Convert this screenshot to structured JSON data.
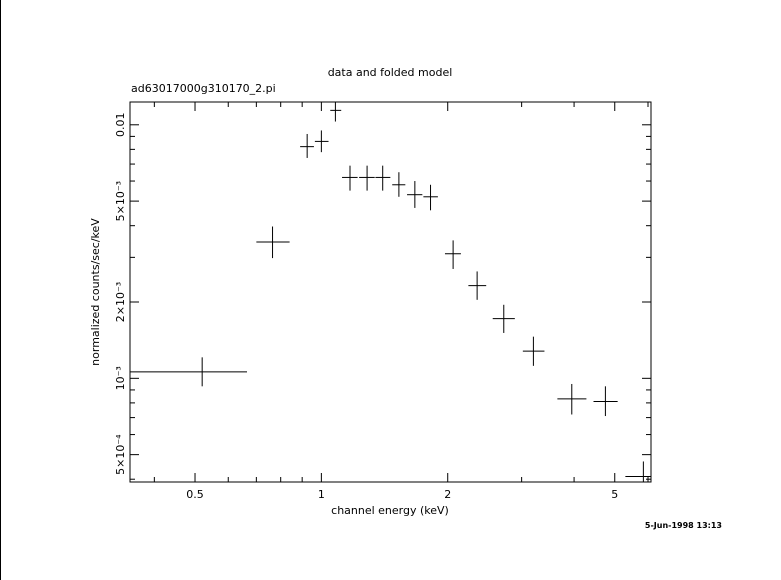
{
  "chart_data": {
    "type": "scatter",
    "title": "data and folded model",
    "subtitle": "ad63017000g310170_2.pi",
    "xlabel": "channel energy (keV)",
    "ylabel": "normalized counts/sec/keV",
    "x_scale": "log",
    "y_scale": "log",
    "xlim": [
      0.35,
      6.1
    ],
    "ylim": [
      0.00039,
      0.0123
    ],
    "x_tick_labels": [
      "0.5",
      "1",
      "2",
      "5"
    ],
    "y_tick_labels": [
      "5×10⁻⁴",
      "10⁻³",
      "2×10⁻³",
      "5×10⁻³",
      "0.01"
    ],
    "timestamp": "5-Jun-1998 13:13",
    "series": [
      {
        "points": [
          {
            "x": 0.52,
            "xlo": 0.35,
            "xhi": 0.665,
            "y": 0.00106,
            "ylo": 0.00093,
            "yhi": 0.00121
          },
          {
            "x": 0.765,
            "xlo": 0.7,
            "xhi": 0.84,
            "y": 0.00345,
            "ylo": 0.00298,
            "yhi": 0.00397
          },
          {
            "x": 0.925,
            "xlo": 0.89,
            "xhi": 0.96,
            "y": 0.0082,
            "ylo": 0.0074,
            "yhi": 0.0092
          },
          {
            "x": 1.0,
            "xlo": 0.965,
            "xhi": 1.04,
            "y": 0.0086,
            "ylo": 0.0078,
            "yhi": 0.0095
          },
          {
            "x": 1.08,
            "xlo": 1.05,
            "xhi": 1.115,
            "y": 0.0114,
            "ylo": 0.0103,
            "yhi": 0.0126
          },
          {
            "x": 1.17,
            "xlo": 1.12,
            "xhi": 1.22,
            "y": 0.0062,
            "ylo": 0.0055,
            "yhi": 0.0069
          },
          {
            "x": 1.285,
            "xlo": 1.23,
            "xhi": 1.34,
            "y": 0.0062,
            "ylo": 0.0055,
            "yhi": 0.0069
          },
          {
            "x": 1.4,
            "xlo": 1.345,
            "xhi": 1.46,
            "y": 0.0062,
            "ylo": 0.0055,
            "yhi": 0.0069
          },
          {
            "x": 1.53,
            "xlo": 1.475,
            "xhi": 1.585,
            "y": 0.0058,
            "ylo": 0.0052,
            "yhi": 0.0065
          },
          {
            "x": 1.67,
            "xlo": 1.6,
            "xhi": 1.74,
            "y": 0.0053,
            "ylo": 0.0047,
            "yhi": 0.006
          },
          {
            "x": 1.82,
            "xlo": 1.75,
            "xhi": 1.895,
            "y": 0.0052,
            "ylo": 0.0046,
            "yhi": 0.0058
          },
          {
            "x": 2.06,
            "xlo": 1.97,
            "xhi": 2.15,
            "y": 0.0031,
            "ylo": 0.0027,
            "yhi": 0.0035
          },
          {
            "x": 2.35,
            "xlo": 2.24,
            "xhi": 2.47,
            "y": 0.00232,
            "ylo": 0.00204,
            "yhi": 0.00264
          },
          {
            "x": 2.72,
            "xlo": 2.56,
            "xhi": 2.89,
            "y": 0.00172,
            "ylo": 0.00151,
            "yhi": 0.00195
          },
          {
            "x": 3.2,
            "xlo": 3.02,
            "xhi": 3.4,
            "y": 0.00128,
            "ylo": 0.00112,
            "yhi": 0.00146
          },
          {
            "x": 3.95,
            "xlo": 3.65,
            "xhi": 4.28,
            "y": 0.00083,
            "ylo": 0.00072,
            "yhi": 0.00095
          },
          {
            "x": 4.75,
            "xlo": 4.45,
            "xhi": 5.08,
            "y": 0.00081,
            "ylo": 0.00071,
            "yhi": 0.00093
          },
          {
            "x": 5.85,
            "xlo": 5.3,
            "xhi": 6.1,
            "y": 0.00041,
            "ylo": 0.00036,
            "yhi": 0.00047
          }
        ]
      }
    ]
  }
}
